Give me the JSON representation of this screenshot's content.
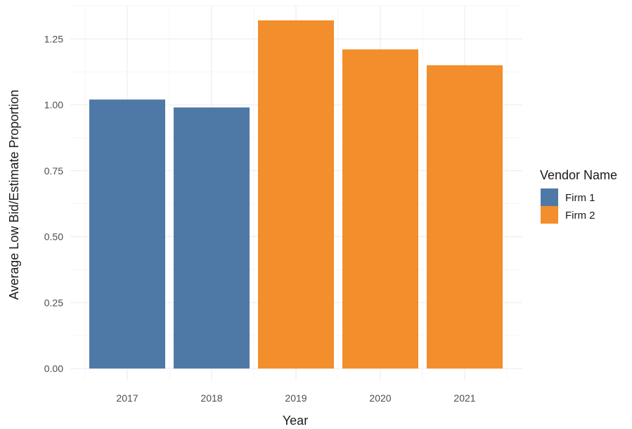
{
  "chart_data": {
    "type": "bar",
    "categories": [
      "2017",
      "2018",
      "2019",
      "2020",
      "2021"
    ],
    "values": [
      1.02,
      0.99,
      1.32,
      1.21,
      1.15
    ],
    "groups": [
      "Firm 1",
      "Firm 1",
      "Firm 2",
      "Firm 2",
      "Firm 2"
    ],
    "xlabel": "Year",
    "ylabel": "Average Low Bid/Estimate Proportion",
    "ylim": [
      0,
      1.4
    ],
    "yticks": [
      0.0,
      0.25,
      0.5,
      0.75,
      1.0,
      1.25
    ],
    "ytick_labels": [
      "0.00",
      "0.25",
      "0.50",
      "0.75",
      "1.00",
      "1.25"
    ],
    "grid": true,
    "legend": {
      "title": "Vendor Name",
      "position": "right",
      "entries": [
        {
          "name": "Firm 1",
          "color": "#4E79A7"
        },
        {
          "name": "Firm 2",
          "color": "#F28E2B"
        }
      ]
    }
  }
}
